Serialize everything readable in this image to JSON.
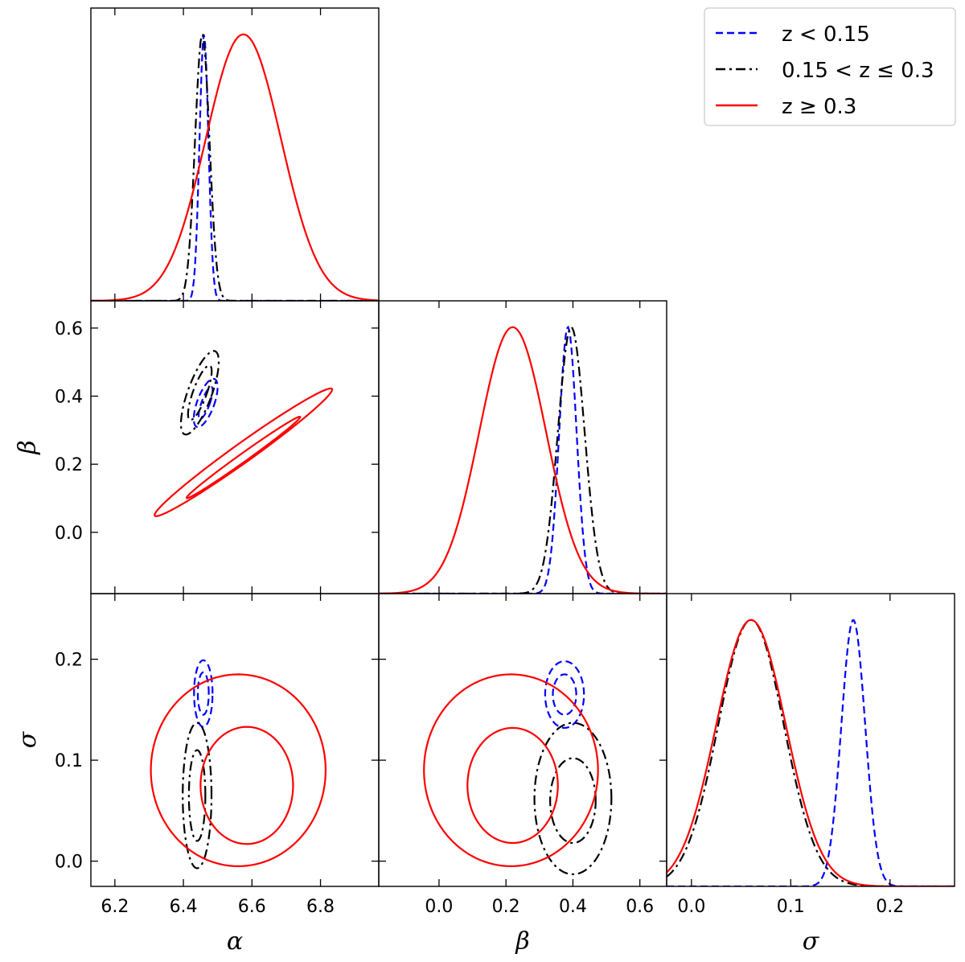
{
  "chart_data": {
    "type": "corner",
    "parameters": [
      {
        "key": "alpha",
        "label": "α",
        "range": [
          6.13,
          6.97
        ],
        "ticks": [
          6.2,
          6.4,
          6.6,
          6.8
        ],
        "tick_labels": [
          "6.2",
          "6.4",
          "6.6",
          "6.8"
        ]
      },
      {
        "key": "beta",
        "label": "β",
        "range": [
          -0.18,
          0.68
        ],
        "ticks": [
          0.0,
          0.2,
          0.4,
          0.6
        ],
        "tick_labels": [
          "0.0",
          "0.2",
          "0.4",
          "0.6"
        ]
      },
      {
        "key": "sigma",
        "label": "σ",
        "range": [
          -0.025,
          0.265
        ],
        "ticks": [
          0.0,
          0.1,
          0.2
        ],
        "tick_labels": [
          "0.0",
          "0.1",
          "0.2"
        ]
      }
    ],
    "legend": {
      "position": "top-right"
    },
    "series": [
      {
        "name": "z < 0.15",
        "color": "#0000ff",
        "linestyle": "dashed",
        "marginals": [
          {
            "mean": 6.46,
            "sd": 0.013
          },
          {
            "mean": 0.385,
            "sd": 0.026
          },
          {
            "mean": 0.163,
            "sd": 0.012
          }
        ],
        "contours": {
          "alpha_beta": [
            {
              "cx": 6.465,
              "cy": 0.38,
              "rx": 0.012,
              "ry": 0.05,
              "angle": -0.35
            },
            {
              "cx": 6.465,
              "cy": 0.38,
              "rx": 0.025,
              "ry": 0.075,
              "angle": -0.35
            }
          ],
          "alpha_sigma": [
            {
              "cx": 6.458,
              "cy": 0.166,
              "rx": 0.016,
              "ry": 0.021,
              "angle": 0
            },
            {
              "cx": 6.458,
              "cy": 0.166,
              "rx": 0.027,
              "ry": 0.033,
              "angle": 0
            }
          ],
          "beta_sigma": [
            {
              "cx": 0.375,
              "cy": 0.165,
              "rx": 0.035,
              "ry": 0.02,
              "angle": 0
            },
            {
              "cx": 0.375,
              "cy": 0.165,
              "rx": 0.058,
              "ry": 0.033,
              "angle": 0
            }
          ]
        }
      },
      {
        "name": "0.15 < z ≤ 0.3",
        "color": "#000000",
        "linestyle": "dashdot",
        "marginals": [
          {
            "mean": 6.455,
            "sd": 0.021
          },
          {
            "mean": 0.395,
            "sd": 0.04
          },
          {
            "mean": 0.06,
            "sd": 0.033
          }
        ],
        "contours": {
          "alpha_beta": [
            {
              "cx": 6.448,
              "cy": 0.41,
              "rx": 0.02,
              "ry": 0.085,
              "angle": -0.35
            },
            {
              "cx": 6.448,
              "cy": 0.41,
              "rx": 0.035,
              "ry": 0.13,
              "angle": -0.35
            }
          ],
          "alpha_sigma": [
            {
              "cx": 6.44,
              "cy": 0.065,
              "rx": 0.024,
              "ry": 0.045,
              "angle": 0
            },
            {
              "cx": 6.44,
              "cy": 0.065,
              "rx": 0.042,
              "ry": 0.072,
              "angle": 0
            }
          ],
          "beta_sigma": [
            {
              "cx": 0.4,
              "cy": 0.06,
              "rx": 0.068,
              "ry": 0.042,
              "angle": 0
            },
            {
              "cx": 0.4,
              "cy": 0.062,
              "rx": 0.115,
              "ry": 0.075,
              "angle": 0
            }
          ]
        }
      },
      {
        "name": "z ≥ 0.3",
        "color": "#ff0000",
        "linestyle": "solid",
        "marginals": [
          {
            "mean": 6.575,
            "sd": 0.11
          },
          {
            "mean": 0.22,
            "sd": 0.1
          },
          {
            "mean": 0.06,
            "sd": 0.035
          }
        ],
        "contours": {
          "alpha_beta": [
            {
              "cx": 6.575,
              "cy": 0.22,
              "rx": 0.012,
              "ry": 0.205,
              "angle": -0.95
            },
            {
              "cx": 6.575,
              "cy": 0.235,
              "rx": 0.028,
              "ry": 0.32,
              "angle": -0.95
            }
          ],
          "alpha_sigma": [
            {
              "cx": 6.585,
              "cy": 0.075,
              "rx": 0.135,
              "ry": 0.058,
              "angle": 0
            },
            {
              "cx": 6.56,
              "cy": 0.09,
              "rx": 0.255,
              "ry": 0.095,
              "angle": 0
            }
          ],
          "beta_sigma": [
            {
              "cx": 0.22,
              "cy": 0.075,
              "rx": 0.135,
              "ry": 0.057,
              "angle": 0
            },
            {
              "cx": 0.215,
              "cy": 0.09,
              "rx": 0.26,
              "ry": 0.095,
              "angle": 0
            }
          ]
        }
      }
    ]
  }
}
